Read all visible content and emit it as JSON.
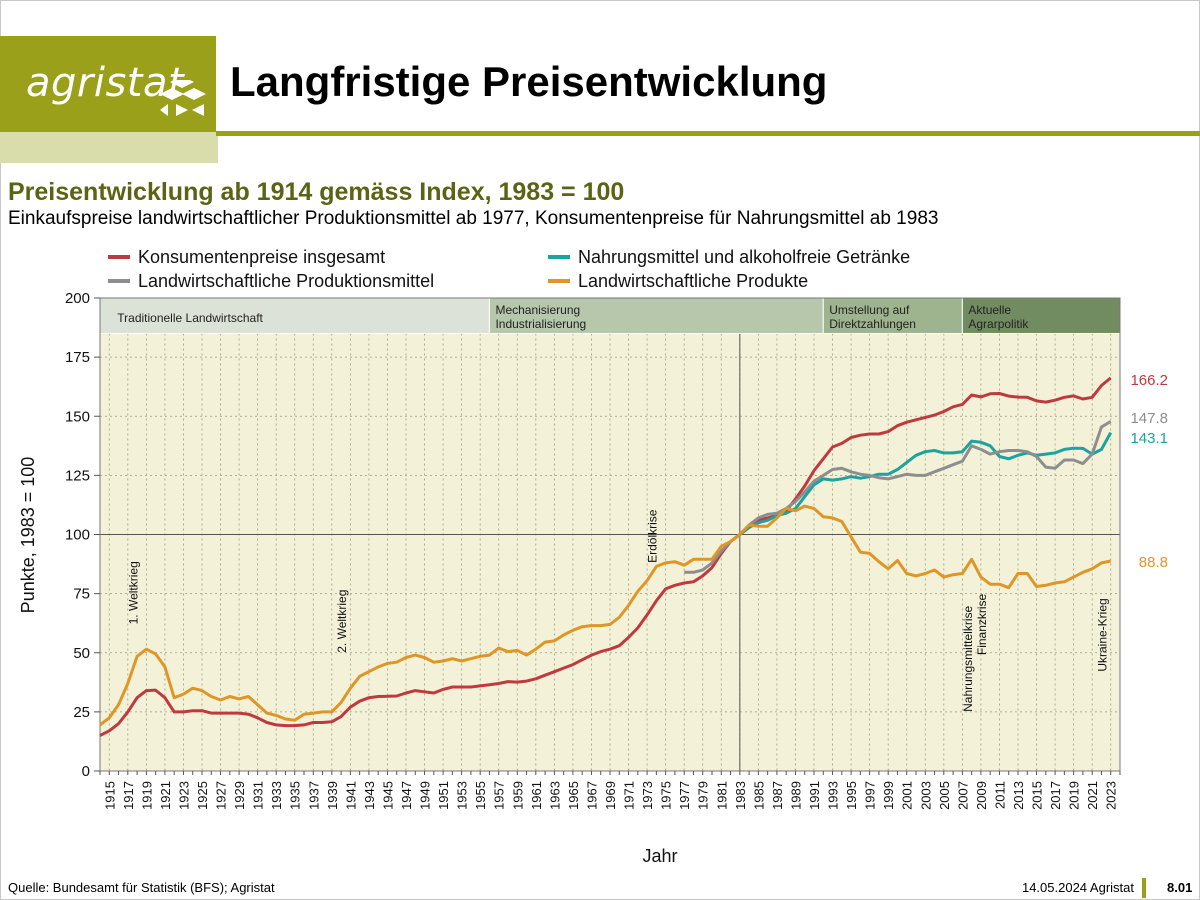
{
  "header": {
    "logo_text": "agristat",
    "title": "Langfristige Preisentwicklung"
  },
  "chart_title": "Preisentwicklung ab 1914 gemäss Index, 1983 = 100",
  "chart_subtitle": "Einkaufspreise landwirtschaftlicher Produktionsmittel ab 1977, Konsumentenpreise für Nahrungsmittel ab 1983",
  "footer": {
    "source": "Quelle: Bundesamt für Statistik (BFS); Agristat",
    "date": "14.05.2024 Agristat",
    "page": "8.01"
  },
  "colors": {
    "brand": "#9ba01a",
    "consumer": "#c0393f",
    "food": "#1ba3a0",
    "inputs": "#8e8e8e",
    "products": "#de9626",
    "plot_bg": "#f4f1d9",
    "band_1": "#dde2d8",
    "band_2": "#b7c7ab",
    "band_3": "#9eb48f",
    "band_4": "#728c61"
  },
  "chart_data": {
    "type": "line",
    "xlabel": "Jahr",
    "ylabel": "Punkte, 1983 = 100",
    "xlim": [
      1914,
      2024
    ],
    "ylim": [
      0,
      200
    ],
    "y_ticks": [
      0,
      25,
      50,
      75,
      100,
      125,
      150,
      175,
      200
    ],
    "x_tick_labels": [
      "1915",
      "1917",
      "1919",
      "1921",
      "1923",
      "1925",
      "1927",
      "1929",
      "1931",
      "1933",
      "1935",
      "1937",
      "1939",
      "1941",
      "1943",
      "1945",
      "1947",
      "1949",
      "1951",
      "1953",
      "1955",
      "1957",
      "1959",
      "1961",
      "1963",
      "1965",
      "1967",
      "1969",
      "1971",
      "1973",
      "1975",
      "1977",
      "1979",
      "1981",
      "1983",
      "1985",
      "1987",
      "1989",
      "1991",
      "1993",
      "1995",
      "1997",
      "1999",
      "2001",
      "2003",
      "2005",
      "2007",
      "2009",
      "2011",
      "2013",
      "2015",
      "2017",
      "2019",
      "2021",
      "2023"
    ],
    "reference_lines": {
      "x": 1983,
      "y": 100
    },
    "legend_position": "top",
    "periods": [
      {
        "label": "Traditionelle Landwirtschaft",
        "from": 1914,
        "to": 1956
      },
      {
        "label": "Mechanisierung Industrialisierung",
        "from": 1956,
        "to": 1992
      },
      {
        "label": "Umstellung auf Direktzahlungen",
        "from": 1992,
        "to": 2007
      },
      {
        "label": "Aktuelle Agrarpolitik",
        "from": 2007,
        "to": 2024
      }
    ],
    "events": [
      {
        "label": "1. Weltkrieg",
        "year": 1917.5,
        "y": 62
      },
      {
        "label": "2. Weltkrieg",
        "year": 1940,
        "y": 50
      },
      {
        "label": "Erdölkrise",
        "year": 1973.5,
        "y": 88
      },
      {
        "label": "Nahrungsmittelkrise",
        "year": 2007.5,
        "y": 25
      },
      {
        "label": "Finanzkrise",
        "year": 2009,
        "y": 49
      },
      {
        "label": "Ukraine-Krieg",
        "year": 2022,
        "y": 42
      }
    ],
    "series": [
      {
        "name": "Konsumentenpreise insgesamt",
        "color_key": "consumer",
        "end_label": "166.2",
        "x": [
          1914,
          1915,
          1916,
          1917,
          1918,
          1919,
          1920,
          1921,
          1922,
          1923,
          1924,
          1925,
          1926,
          1927,
          1928,
          1929,
          1930,
          1931,
          1932,
          1933,
          1934,
          1935,
          1936,
          1937,
          1938,
          1939,
          1940,
          1941,
          1942,
          1943,
          1944,
          1945,
          1946,
          1947,
          1948,
          1949,
          1950,
          1951,
          1952,
          1953,
          1954,
          1955,
          1956,
          1957,
          1958,
          1959,
          1960,
          1961,
          1962,
          1963,
          1964,
          1965,
          1966,
          1967,
          1968,
          1969,
          1970,
          1971,
          1972,
          1973,
          1974,
          1975,
          1976,
          1977,
          1978,
          1979,
          1980,
          1981,
          1982,
          1983,
          1984,
          1985,
          1986,
          1987,
          1988,
          1989,
          1990,
          1991,
          1992,
          1993,
          1994,
          1995,
          1996,
          1997,
          1998,
          1999,
          2000,
          2001,
          2002,
          2003,
          2004,
          2005,
          2006,
          2007,
          2008,
          2009,
          2010,
          2011,
          2012,
          2013,
          2014,
          2015,
          2016,
          2017,
          2018,
          2019,
          2020,
          2021,
          2022,
          2023
        ],
        "values": [
          15,
          17,
          20,
          25,
          31,
          34,
          34.2,
          31,
          25,
          25,
          25.5,
          25.5,
          24.5,
          24.5,
          24.5,
          24.5,
          24,
          22.5,
          20.5,
          19.5,
          19.2,
          19.2,
          19.5,
          20.5,
          20.5,
          20.8,
          23,
          27,
          29.5,
          31,
          31.5,
          31.6,
          31.7,
          33,
          34,
          33.5,
          33,
          34.5,
          35.5,
          35.5,
          35.5,
          36,
          36.5,
          37,
          37.8,
          37.6,
          38,
          39,
          40.5,
          42,
          43.5,
          45,
          47,
          49,
          50.5,
          51.5,
          53,
          56.5,
          60.5,
          66,
          72,
          77,
          78.5,
          79.5,
          80,
          82.5,
          86,
          92,
          97,
          100,
          103,
          106,
          107,
          108,
          110,
          115,
          120.5,
          127,
          132,
          137,
          138.5,
          141,
          142,
          142.5,
          142.5,
          143.5,
          146,
          147.5,
          148.5,
          149.5,
          150.5,
          152,
          154,
          155,
          159,
          158.2,
          159.5,
          159.6,
          158.5,
          158.1,
          158,
          156.5,
          156,
          156.8,
          158,
          158.6,
          157.3,
          158,
          163,
          166.2
        ]
      },
      {
        "name": "Nahrungsmittel und alkoholfreie Getränke",
        "color_key": "food",
        "end_label": "143.1",
        "x": [
          1983,
          1984,
          1985,
          1986,
          1987,
          1988,
          1989,
          1990,
          1991,
          1992,
          1993,
          1994,
          1995,
          1996,
          1997,
          1998,
          1999,
          2000,
          2001,
          2002,
          2003,
          2004,
          2005,
          2006,
          2007,
          2008,
          2009,
          2010,
          2011,
          2012,
          2013,
          2014,
          2015,
          2016,
          2017,
          2018,
          2019,
          2020,
          2021,
          2022,
          2023
        ],
        "values": [
          100,
          103,
          105,
          106,
          108,
          109,
          111,
          116,
          121,
          123.5,
          123,
          123.5,
          124.5,
          123.8,
          124.5,
          125.5,
          125.5,
          127.5,
          130.5,
          133.5,
          135,
          135.5,
          134.5,
          134.5,
          135,
          139.5,
          139,
          137.5,
          133,
          132,
          133.5,
          134.5,
          133.5,
          134,
          134.5,
          136,
          136.5,
          136.4,
          134,
          136,
          143.1
        ]
      },
      {
        "name": "Landwirtschaftliche Produktionsmittel",
        "color_key": "inputs",
        "end_label": "147.8",
        "x": [
          1977,
          1978,
          1979,
          1980,
          1981,
          1982,
          1983,
          1984,
          1985,
          1986,
          1987,
          1988,
          1989,
          1990,
          1991,
          1992,
          1993,
          1994,
          1995,
          1996,
          1997,
          1998,
          1999,
          2000,
          2001,
          2002,
          2003,
          2004,
          2005,
          2006,
          2007,
          2008,
          2009,
          2010,
          2011,
          2012,
          2013,
          2014,
          2015,
          2016,
          2017,
          2018,
          2019,
          2020,
          2021,
          2022,
          2023
        ],
        "values": [
          84,
          84,
          85,
          88,
          93,
          97,
          100,
          104,
          107,
          108.5,
          109,
          111,
          114,
          118,
          122.5,
          125,
          127.5,
          128,
          126.5,
          125.5,
          125,
          124,
          123.5,
          124.5,
          125.5,
          125,
          125,
          126.5,
          128,
          129.5,
          131,
          137.5,
          136,
          134,
          135,
          135.5,
          135.5,
          135,
          133,
          128.5,
          128,
          131.5,
          131.5,
          130,
          134,
          145.5,
          147.8
        ]
      },
      {
        "name": "Landwirtschaftliche Produkte",
        "color_key": "products",
        "end_label": "88.8",
        "x": [
          1914,
          1915,
          1916,
          1917,
          1918,
          1919,
          1920,
          1921,
          1922,
          1923,
          1924,
          1925,
          1926,
          1927,
          1928,
          1929,
          1930,
          1931,
          1932,
          1933,
          1934,
          1935,
          1936,
          1937,
          1938,
          1939,
          1940,
          1941,
          1942,
          1943,
          1944,
          1945,
          1946,
          1947,
          1948,
          1949,
          1950,
          1951,
          1952,
          1953,
          1954,
          1955,
          1956,
          1957,
          1958,
          1959,
          1960,
          1961,
          1962,
          1963,
          1964,
          1965,
          1966,
          1967,
          1968,
          1969,
          1970,
          1971,
          1972,
          1973,
          1974,
          1975,
          1976,
          1977,
          1978,
          1979,
          1980,
          1981,
          1982,
          1983,
          1984,
          1985,
          1986,
          1987,
          1988,
          1989,
          1990,
          1991,
          1992,
          1993,
          1994,
          1995,
          1996,
          1997,
          1998,
          1999,
          2000,
          2001,
          2002,
          2003,
          2004,
          2005,
          2006,
          2007,
          2008,
          2009,
          2010,
          2011,
          2012,
          2013,
          2014,
          2015,
          2016,
          2017,
          2018,
          2019,
          2020,
          2021,
          2022,
          2023
        ],
        "values": [
          19.5,
          22.5,
          28,
          37,
          48.5,
          51.5,
          49.5,
          44,
          31,
          32.5,
          35,
          34,
          31.5,
          30,
          31.5,
          30.5,
          31.5,
          28,
          24.5,
          23.5,
          22,
          21.5,
          24,
          24.5,
          25,
          25,
          29,
          35,
          40,
          42,
          44,
          45.5,
          46,
          48,
          49,
          48,
          46,
          46.5,
          47.5,
          46.5,
          47.5,
          48.5,
          49,
          52,
          50.5,
          51,
          49,
          51.5,
          54.5,
          55,
          57.5,
          59.5,
          61,
          61.5,
          61.5,
          62,
          65,
          70,
          76,
          80.5,
          86.5,
          88,
          88.5,
          87,
          89.5,
          89.5,
          89.5,
          95,
          97,
          100,
          104,
          103.5,
          103.5,
          107,
          111,
          110,
          112,
          111,
          107.5,
          107,
          105.5,
          99,
          92.5,
          92,
          88.5,
          85.5,
          89,
          83.5,
          82.5,
          83.5,
          85,
          82,
          83,
          83.5,
          89.5,
          82,
          79,
          79,
          77.5,
          83.5,
          83.5,
          78,
          78.5,
          79.5,
          80,
          82,
          84,
          85.5,
          88,
          88.8
        ]
      }
    ]
  }
}
